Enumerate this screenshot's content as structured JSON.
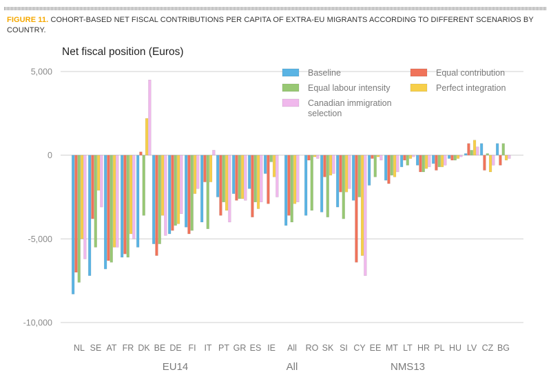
{
  "figure": {
    "label": "FIGURE 11.",
    "title": "COHORT-BASED NET FISCAL CONTRIBUTIONS PER CAPITA OF EXTRA-EU MIGRANTS ACCORDING TO DIFFERENT SCENARIOS BY COUNTRY."
  },
  "chart_data": {
    "type": "bar",
    "ylabel": "Net fiscal position (Euros)",
    "ylim": [
      -10000,
      5000
    ],
    "yticks": [
      5000,
      0,
      -5000,
      -10000
    ],
    "ytick_labels": [
      "5,000",
      "0",
      "-5,000",
      "-10,000"
    ],
    "grid": true,
    "legend_position": "top-right",
    "categories": [
      "NL",
      "SE",
      "AT",
      "FR",
      "DK",
      "BE",
      "DE",
      "FI",
      "IT",
      "PT",
      "GR",
      "ES",
      "IE",
      "All",
      "RO",
      "SK",
      "SI",
      "CY",
      "EE",
      "MT",
      "LT",
      "HR",
      "PL",
      "HU",
      "LV",
      "CZ",
      "BG"
    ],
    "groups": [
      {
        "label": "EU14",
        "from": "NL",
        "to": "IE"
      },
      {
        "label": "All",
        "from": "All",
        "to": "All"
      },
      {
        "label": "NMS13",
        "from": "RO",
        "to": "BG"
      }
    ],
    "series": [
      {
        "name": "Baseline",
        "color": "#5ab4e4",
        "values": [
          -8300,
          -7200,
          -6800,
          -6100,
          -5500,
          -5300,
          -4700,
          -4300,
          -4000,
          -2500,
          -2300,
          -2000,
          -1100,
          -4200,
          -3600,
          -3400,
          -3100,
          -2700,
          -1800,
          -1500,
          -700,
          -600,
          -500,
          -200,
          100,
          700,
          700
        ]
      },
      {
        "name": "Equal contribution",
        "color": "#f0735a",
        "values": [
          -7000,
          -3800,
          -6300,
          -5900,
          200,
          -6000,
          -4500,
          -4700,
          -1600,
          -3600,
          -2700,
          -3700,
          -2900,
          -3600,
          -300,
          -1300,
          -2200,
          -6400,
          -200,
          -1700,
          -300,
          -1000,
          -900,
          -300,
          700,
          -900,
          -600
        ]
      },
      {
        "name": "Equal labour intensity",
        "color": "#98c874",
        "values": [
          -7600,
          -5500,
          -6400,
          -6100,
          -3600,
          -5300,
          -4200,
          -4500,
          -4400,
          -2800,
          -2600,
          -2800,
          -400,
          -4000,
          -3300,
          -3700,
          -3800,
          -2500,
          -1300,
          -1200,
          -600,
          -1000,
          -700,
          -300,
          300,
          100,
          700
        ]
      },
      {
        "name": "Perfect integration",
        "color": "#f7cf4a",
        "values": [
          -5000,
          -2100,
          -5500,
          -4700,
          2200,
          -3600,
          -4100,
          -2300,
          -1600,
          -3300,
          -2600,
          -3200,
          -1300,
          -2900,
          -100,
          -1200,
          -2200,
          -6000,
          -100,
          -1300,
          -200,
          -800,
          -700,
          -200,
          900,
          -1000,
          -300
        ]
      },
      {
        "name": "Canadian immigration selection",
        "color": "#f0b8ec",
        "values": [
          -6200,
          -3100,
          -5500,
          -5000,
          4500,
          -4800,
          -3500,
          -2000,
          300,
          -4000,
          -2700,
          -2800,
          -2500,
          -2800,
          -200,
          -1100,
          -2000,
          -7200,
          -300,
          -1000,
          -100,
          -700,
          -600,
          -100,
          500,
          -600,
          -200
        ]
      }
    ]
  }
}
